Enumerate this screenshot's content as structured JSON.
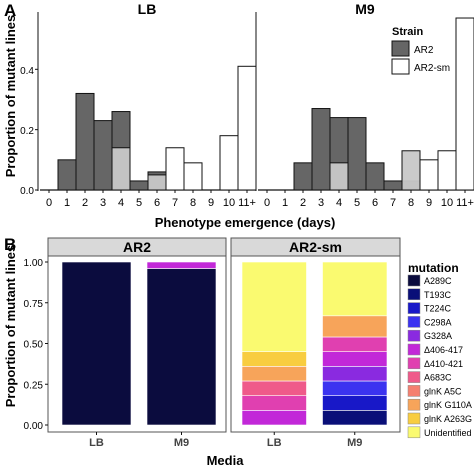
{
  "panel_a": {
    "letter": "A",
    "ylabel": "Proportion of mutant lines",
    "xlabel": "Phenotype emergence (days)",
    "legend_title": "Strain",
    "legend_items": [
      {
        "label": "AR2",
        "color": "#666666"
      },
      {
        "label": "AR2-sm",
        "color": "#ffffff"
      }
    ],
    "y_ticks": [
      "0.0",
      "0.2",
      "0.4"
    ]
  },
  "panel_b": {
    "letter": "B",
    "ylabel": "Proportion of mutant lines",
    "xlabel": "Media",
    "legend_title": "mutation",
    "y_ticks": [
      "0.00",
      "0.25",
      "0.50",
      "0.75",
      "1.00"
    ]
  },
  "chart_data": [
    {
      "type": "bar",
      "title": "LB",
      "categories": [
        "0",
        "1",
        "2",
        "3",
        "4",
        "5",
        "6",
        "7",
        "8",
        "9",
        "10",
        "11+"
      ],
      "series": [
        {
          "name": "AR2",
          "color": "#666666",
          "values": [
            0,
            0.1,
            0.32,
            0.23,
            0.26,
            0.03,
            0.06,
            0,
            0,
            0,
            0,
            0
          ]
        },
        {
          "name": "AR2-sm",
          "color": "#ffffff",
          "values": [
            0,
            0,
            0,
            0,
            0.14,
            0,
            0.05,
            0.14,
            0.09,
            0,
            0.18,
            0.41
          ]
        }
      ],
      "overlap_color": "#c8c8c8",
      "ylim": [
        0,
        0.58
      ],
      "xlabel": "Phenotype emergence (days)",
      "ylabel": "Proportion of mutant lines"
    },
    {
      "type": "bar",
      "title": "M9",
      "categories": [
        "0",
        "1",
        "2",
        "3",
        "4",
        "5",
        "6",
        "7",
        "8",
        "9",
        "10",
        "11+"
      ],
      "series": [
        {
          "name": "AR2",
          "color": "#666666",
          "values": [
            0,
            0,
            0.09,
            0.27,
            0.24,
            0.24,
            0.09,
            0.03,
            0.03,
            0,
            0,
            0
          ]
        },
        {
          "name": "AR2-sm",
          "color": "#ffffff",
          "values": [
            0,
            0,
            0,
            0,
            0.09,
            0,
            0,
            0,
            0.13,
            0.1,
            0.13,
            0.57
          ]
        }
      ],
      "overlap_color": "#c8c8c8",
      "ylim": [
        0,
        0.58
      ],
      "xlabel": "Phenotype emergence (days)",
      "ylabel": "Proportion of mutant lines"
    },
    {
      "type": "bar",
      "stacked": true,
      "facets": [
        "AR2",
        "AR2-sm"
      ],
      "categories": [
        "LB",
        "M9"
      ],
      "mutations": [
        {
          "name": "A289C",
          "color": "#0b0c3e"
        },
        {
          "name": "T193C",
          "color": "#0a0f78"
        },
        {
          "name": "T224C",
          "color": "#1818c8"
        },
        {
          "name": "C298A",
          "color": "#3b33f0"
        },
        {
          "name": "G328A",
          "color": "#8a2ae0"
        },
        {
          "name": "Δ406-417",
          "color": "#c228d8"
        },
        {
          "name": "Δ410-421",
          "color": "#e040b0"
        },
        {
          "name": "A683C",
          "color": "#ef5a8a"
        },
        {
          "name": "glnK A5C",
          "color": "#f58070"
        },
        {
          "name": "glnK G110A",
          "color": "#f7a45a"
        },
        {
          "name": "glnK A263G",
          "color": "#f8cd40"
        },
        {
          "name": "Unidentified",
          "color": "#fafa70"
        }
      ],
      "stacks": [
        {
          "facet": "AR2",
          "category": "LB",
          "segments": [
            {
              "mutation": "A289C",
              "value": 1.0
            }
          ]
        },
        {
          "facet": "AR2",
          "category": "M9",
          "segments": [
            {
              "mutation": "A289C",
              "value": 0.96
            },
            {
              "mutation": "Δ406-417",
              "value": 0.04
            }
          ]
        },
        {
          "facet": "AR2-sm",
          "category": "LB",
          "segments": [
            {
              "mutation": "Δ406-417",
              "value": 0.09
            },
            {
              "mutation": "Δ410-421",
              "value": 0.09
            },
            {
              "mutation": "A683C",
              "value": 0.09
            },
            {
              "mutation": "glnK G110A",
              "value": 0.09
            },
            {
              "mutation": "glnK A263G",
              "value": 0.09
            },
            {
              "mutation": "Unidentified",
              "value": 0.55
            }
          ]
        },
        {
          "facet": "AR2-sm",
          "category": "M9",
          "segments": [
            {
              "mutation": "T193C",
              "value": 0.09
            },
            {
              "mutation": "T224C",
              "value": 0.09
            },
            {
              "mutation": "C298A",
              "value": 0.09
            },
            {
              "mutation": "G328A",
              "value": 0.09
            },
            {
              "mutation": "Δ406-417",
              "value": 0.09
            },
            {
              "mutation": "Δ410-421",
              "value": 0.09
            },
            {
              "mutation": "glnK G110A",
              "value": 0.13
            },
            {
              "mutation": "Unidentified",
              "value": 0.33
            }
          ]
        }
      ],
      "ylim": [
        0,
        1.0
      ],
      "xlabel": "Media",
      "ylabel": "Proportion of mutant lines"
    }
  ]
}
